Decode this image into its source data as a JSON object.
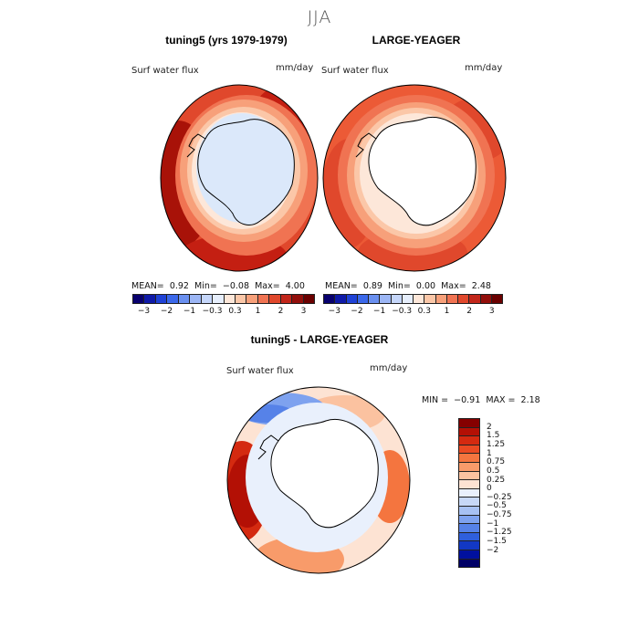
{
  "season": "JJA",
  "panels": {
    "left": {
      "title": "tuning5 (yrs 1979-1979)",
      "variable": "Surf water flux",
      "units": "mm/day",
      "mean_label": "MEAN=",
      "mean": "0.92",
      "min_label": "Min=",
      "min": "−0.08",
      "max_label": "Max=",
      "max": "4.00"
    },
    "right": {
      "title": "LARGE-YEAGER",
      "variable": "Surf water flux",
      "units": "mm/day",
      "mean_label": "MEAN=",
      "mean": "0.89",
      "min_label": "Min=",
      "min": "0.00",
      "max_label": "Max=",
      "max": "2.48"
    },
    "diff": {
      "title": "tuning5 - LARGE-YEAGER",
      "variable": "Surf water flux",
      "units": "mm/day",
      "min_label": "MIN =",
      "min": "−0.91",
      "max_label": "MAX =",
      "max": "2.18"
    }
  },
  "colorbar_top": {
    "colors": [
      "#08006e",
      "#0f1aa8",
      "#1f42d6",
      "#3b68ea",
      "#6a90f0",
      "#9cb6f5",
      "#c5d6fa",
      "#e6eefc",
      "#fde7d9",
      "#fbc7a8",
      "#f7a07a",
      "#f07352",
      "#e0482c",
      "#c2261a",
      "#920f0b",
      "#6a0000"
    ],
    "ticks": [
      "−3",
      "−2",
      "−1",
      "−0.3",
      "0.3",
      "1",
      "2",
      "3"
    ]
  },
  "colorbar_diff": {
    "colors": [
      "#850000",
      "#b31005",
      "#d42a10",
      "#ea4a22",
      "#f4753f",
      "#f89b6a",
      "#fbc2a0",
      "#fde3d3",
      "#e9f0fc",
      "#c7d8f7",
      "#a7c1f3",
      "#7ea2ef",
      "#5682e8",
      "#2f5fdc",
      "#1238c4",
      "#00109e",
      "#000066"
    ],
    "ticks": [
      "2",
      "1.5",
      "1.25",
      "1",
      "0.75",
      "0.5",
      "0.25",
      "0",
      "−0.25",
      "−0.5",
      "−0.75",
      "−1",
      "−1.25",
      "−1.5",
      "−2"
    ]
  },
  "map_colors": {
    "ocean_high": "#c41f12",
    "ocean_mid": "#ec5a36",
    "ocean_low": "#f59a70",
    "ring": "#fbc7a8",
    "pale": "#fde7d9",
    "ice": "#dbe8fa",
    "land": "#ffffff",
    "coast": "#000000",
    "diff_neg": "#7ea2ef",
    "diff_pos_high": "#d42a10"
  }
}
